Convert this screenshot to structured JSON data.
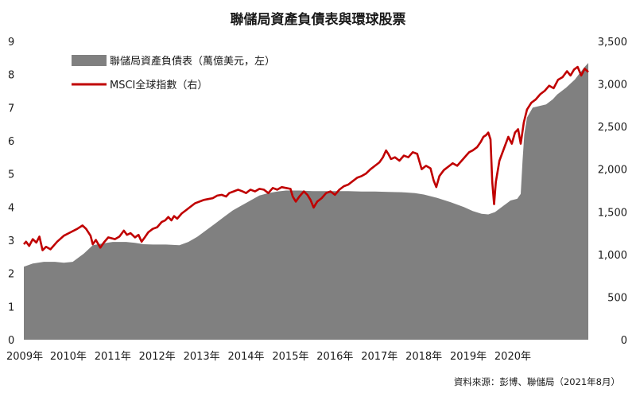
{
  "chart_data": {
    "type": "area",
    "title": "聯儲局資產負債表與環球股票",
    "source": "資料來源：彭博、聯儲局（2021年8月）",
    "x_tick_labels": [
      "2009年",
      "2010年",
      "2011年",
      "2012年",
      "2013年",
      "2014年",
      "2015年",
      "2016年",
      "2017年",
      "2018年",
      "2019年",
      "2020年"
    ],
    "y_left": {
      "lim": [
        0,
        9
      ],
      "ticks": [
        "0",
        "1",
        "2",
        "3",
        "4",
        "5",
        "6",
        "7",
        "8",
        "9"
      ]
    },
    "y_right": {
      "lim": [
        0,
        3500
      ],
      "ticks": [
        "0",
        "500",
        "1,000",
        "1,500",
        "2,000",
        "2,500",
        "3,000",
        "3,500"
      ]
    },
    "grid": false,
    "legend_position": "top-left",
    "series": [
      {
        "name": "聯儲局資產負債表（萬億美元，左）",
        "kind": "area",
        "axis": "left",
        "color": "#808080",
        "points": [
          [
            2009.0,
            2.2
          ],
          [
            2009.2,
            2.3
          ],
          [
            2009.45,
            2.35
          ],
          [
            2009.7,
            2.35
          ],
          [
            2009.9,
            2.32
          ],
          [
            2010.1,
            2.35
          ],
          [
            2010.35,
            2.6
          ],
          [
            2010.55,
            2.85
          ],
          [
            2010.75,
            2.9
          ],
          [
            2011.0,
            2.95
          ],
          [
            2011.3,
            2.95
          ],
          [
            2011.5,
            2.92
          ],
          [
            2011.7,
            2.88
          ],
          [
            2011.9,
            2.87
          ],
          [
            2012.2,
            2.87
          ],
          [
            2012.5,
            2.85
          ],
          [
            2012.7,
            2.95
          ],
          [
            2012.9,
            3.1
          ],
          [
            2013.1,
            3.3
          ],
          [
            2013.3,
            3.5
          ],
          [
            2013.5,
            3.7
          ],
          [
            2013.7,
            3.9
          ],
          [
            2013.9,
            4.05
          ],
          [
            2014.1,
            4.2
          ],
          [
            2014.3,
            4.35
          ],
          [
            2014.5,
            4.42
          ],
          [
            2014.7,
            4.47
          ],
          [
            2014.9,
            4.5
          ],
          [
            2015.2,
            4.5
          ],
          [
            2015.5,
            4.48
          ],
          [
            2015.8,
            4.48
          ],
          [
            2016.0,
            4.48
          ],
          [
            2016.3,
            4.48
          ],
          [
            2016.6,
            4.47
          ],
          [
            2016.9,
            4.47
          ],
          [
            2017.2,
            4.46
          ],
          [
            2017.5,
            4.45
          ],
          [
            2017.8,
            4.42
          ],
          [
            2018.0,
            4.38
          ],
          [
            2018.3,
            4.28
          ],
          [
            2018.6,
            4.15
          ],
          [
            2018.9,
            4.0
          ],
          [
            2019.1,
            3.88
          ],
          [
            2019.3,
            3.8
          ],
          [
            2019.45,
            3.78
          ],
          [
            2019.6,
            3.85
          ],
          [
            2019.8,
            4.05
          ],
          [
            2019.95,
            4.2
          ],
          [
            2020.1,
            4.25
          ],
          [
            2020.18,
            4.4
          ],
          [
            2020.22,
            5.4
          ],
          [
            2020.26,
            6.2
          ],
          [
            2020.32,
            6.7
          ],
          [
            2020.45,
            7.0
          ],
          [
            2020.6,
            7.05
          ],
          [
            2020.75,
            7.1
          ],
          [
            2020.9,
            7.25
          ],
          [
            2021.0,
            7.4
          ],
          [
            2021.2,
            7.6
          ],
          [
            2021.4,
            7.85
          ],
          [
            2021.6,
            8.2
          ],
          [
            2021.7,
            8.35
          ]
        ]
      },
      {
        "name": "MSCI全球指數（右）",
        "kind": "line",
        "axis": "right",
        "color": "#c00000",
        "points": [
          [
            2009.0,
            1120
          ],
          [
            2009.05,
            1150
          ],
          [
            2009.12,
            1100
          ],
          [
            2009.2,
            1180
          ],
          [
            2009.28,
            1140
          ],
          [
            2009.35,
            1210
          ],
          [
            2009.42,
            1050
          ],
          [
            2009.5,
            1090
          ],
          [
            2009.6,
            1060
          ],
          [
            2009.75,
            1150
          ],
          [
            2009.9,
            1220
          ],
          [
            2010.05,
            1260
          ],
          [
            2010.2,
            1300
          ],
          [
            2010.32,
            1340
          ],
          [
            2010.4,
            1300
          ],
          [
            2010.5,
            1220
          ],
          [
            2010.55,
            1120
          ],
          [
            2010.62,
            1170
          ],
          [
            2010.72,
            1080
          ],
          [
            2010.8,
            1140
          ],
          [
            2010.9,
            1200
          ],
          [
            2011.05,
            1180
          ],
          [
            2011.15,
            1210
          ],
          [
            2011.25,
            1280
          ],
          [
            2011.32,
            1230
          ],
          [
            2011.4,
            1250
          ],
          [
            2011.5,
            1200
          ],
          [
            2011.58,
            1230
          ],
          [
            2011.65,
            1150
          ],
          [
            2011.72,
            1200
          ],
          [
            2011.8,
            1260
          ],
          [
            2011.9,
            1300
          ],
          [
            2012.0,
            1320
          ],
          [
            2012.1,
            1380
          ],
          [
            2012.18,
            1400
          ],
          [
            2012.25,
            1440
          ],
          [
            2012.32,
            1400
          ],
          [
            2012.38,
            1450
          ],
          [
            2012.45,
            1420
          ],
          [
            2012.55,
            1480
          ],
          [
            2012.65,
            1520
          ],
          [
            2012.75,
            1560
          ],
          [
            2012.85,
            1600
          ],
          [
            2012.95,
            1620
          ],
          [
            2013.05,
            1640
          ],
          [
            2013.15,
            1650
          ],
          [
            2013.25,
            1660
          ],
          [
            2013.35,
            1690
          ],
          [
            2013.45,
            1700
          ],
          [
            2013.55,
            1680
          ],
          [
            2013.62,
            1720
          ],
          [
            2013.72,
            1740
          ],
          [
            2013.82,
            1760
          ],
          [
            2013.92,
            1740
          ],
          [
            2014.0,
            1720
          ],
          [
            2014.1,
            1760
          ],
          [
            2014.2,
            1740
          ],
          [
            2014.3,
            1770
          ],
          [
            2014.4,
            1760
          ],
          [
            2014.5,
            1720
          ],
          [
            2014.6,
            1780
          ],
          [
            2014.7,
            1760
          ],
          [
            2014.8,
            1790
          ],
          [
            2014.9,
            1780
          ],
          [
            2015.0,
            1770
          ],
          [
            2015.05,
            1680
          ],
          [
            2015.12,
            1620
          ],
          [
            2015.2,
            1680
          ],
          [
            2015.3,
            1740
          ],
          [
            2015.38,
            1700
          ],
          [
            2015.45,
            1640
          ],
          [
            2015.52,
            1550
          ],
          [
            2015.6,
            1620
          ],
          [
            2015.7,
            1660
          ],
          [
            2015.8,
            1720
          ],
          [
            2015.9,
            1740
          ],
          [
            2016.0,
            1700
          ],
          [
            2016.1,
            1760
          ],
          [
            2016.2,
            1800
          ],
          [
            2016.3,
            1820
          ],
          [
            2016.4,
            1860
          ],
          [
            2016.5,
            1900
          ],
          [
            2016.6,
            1920
          ],
          [
            2016.7,
            1950
          ],
          [
            2016.8,
            2000
          ],
          [
            2016.9,
            2040
          ],
          [
            2017.0,
            2080
          ],
          [
            2017.08,
            2140
          ],
          [
            2017.15,
            2220
          ],
          [
            2017.2,
            2180
          ],
          [
            2017.26,
            2120
          ],
          [
            2017.35,
            2140
          ],
          [
            2017.45,
            2100
          ],
          [
            2017.55,
            2160
          ],
          [
            2017.65,
            2140
          ],
          [
            2017.75,
            2200
          ],
          [
            2017.85,
            2180
          ],
          [
            2017.95,
            2000
          ],
          [
            2018.05,
            2040
          ],
          [
            2018.15,
            2010
          ],
          [
            2018.22,
            1870
          ],
          [
            2018.28,
            1790
          ],
          [
            2018.35,
            1920
          ],
          [
            2018.45,
            1990
          ],
          [
            2018.55,
            2030
          ],
          [
            2018.65,
            2070
          ],
          [
            2018.75,
            2040
          ],
          [
            2018.85,
            2100
          ],
          [
            2018.95,
            2160
          ],
          [
            2019.02,
            2200
          ],
          [
            2019.1,
            2220
          ],
          [
            2019.2,
            2260
          ],
          [
            2019.28,
            2320
          ],
          [
            2019.34,
            2380
          ],
          [
            2019.4,
            2400
          ],
          [
            2019.45,
            2430
          ],
          [
            2019.5,
            2350
          ],
          [
            2019.54,
            1850
          ],
          [
            2019.58,
            1590
          ],
          [
            2019.62,
            1850
          ],
          [
            2019.7,
            2100
          ],
          [
            2019.8,
            2240
          ],
          [
            2019.9,
            2380
          ],
          [
            2019.98,
            2300
          ],
          [
            2020.05,
            2430
          ],
          [
            2020.12,
            2470
          ],
          [
            2020.18,
            2300
          ],
          [
            2020.25,
            2550
          ],
          [
            2020.32,
            2700
          ],
          [
            2020.42,
            2780
          ],
          [
            2020.52,
            2820
          ],
          [
            2020.62,
            2880
          ],
          [
            2020.72,
            2920
          ],
          [
            2020.82,
            2980
          ],
          [
            2020.92,
            2950
          ],
          [
            2021.02,
            3050
          ],
          [
            2021.12,
            3080
          ],
          [
            2021.22,
            3150
          ],
          [
            2021.3,
            3100
          ],
          [
            2021.38,
            3170
          ],
          [
            2021.46,
            3200
          ],
          [
            2021.54,
            3100
          ],
          [
            2021.62,
            3180
          ],
          [
            2021.7,
            3140
          ]
        ]
      }
    ]
  }
}
